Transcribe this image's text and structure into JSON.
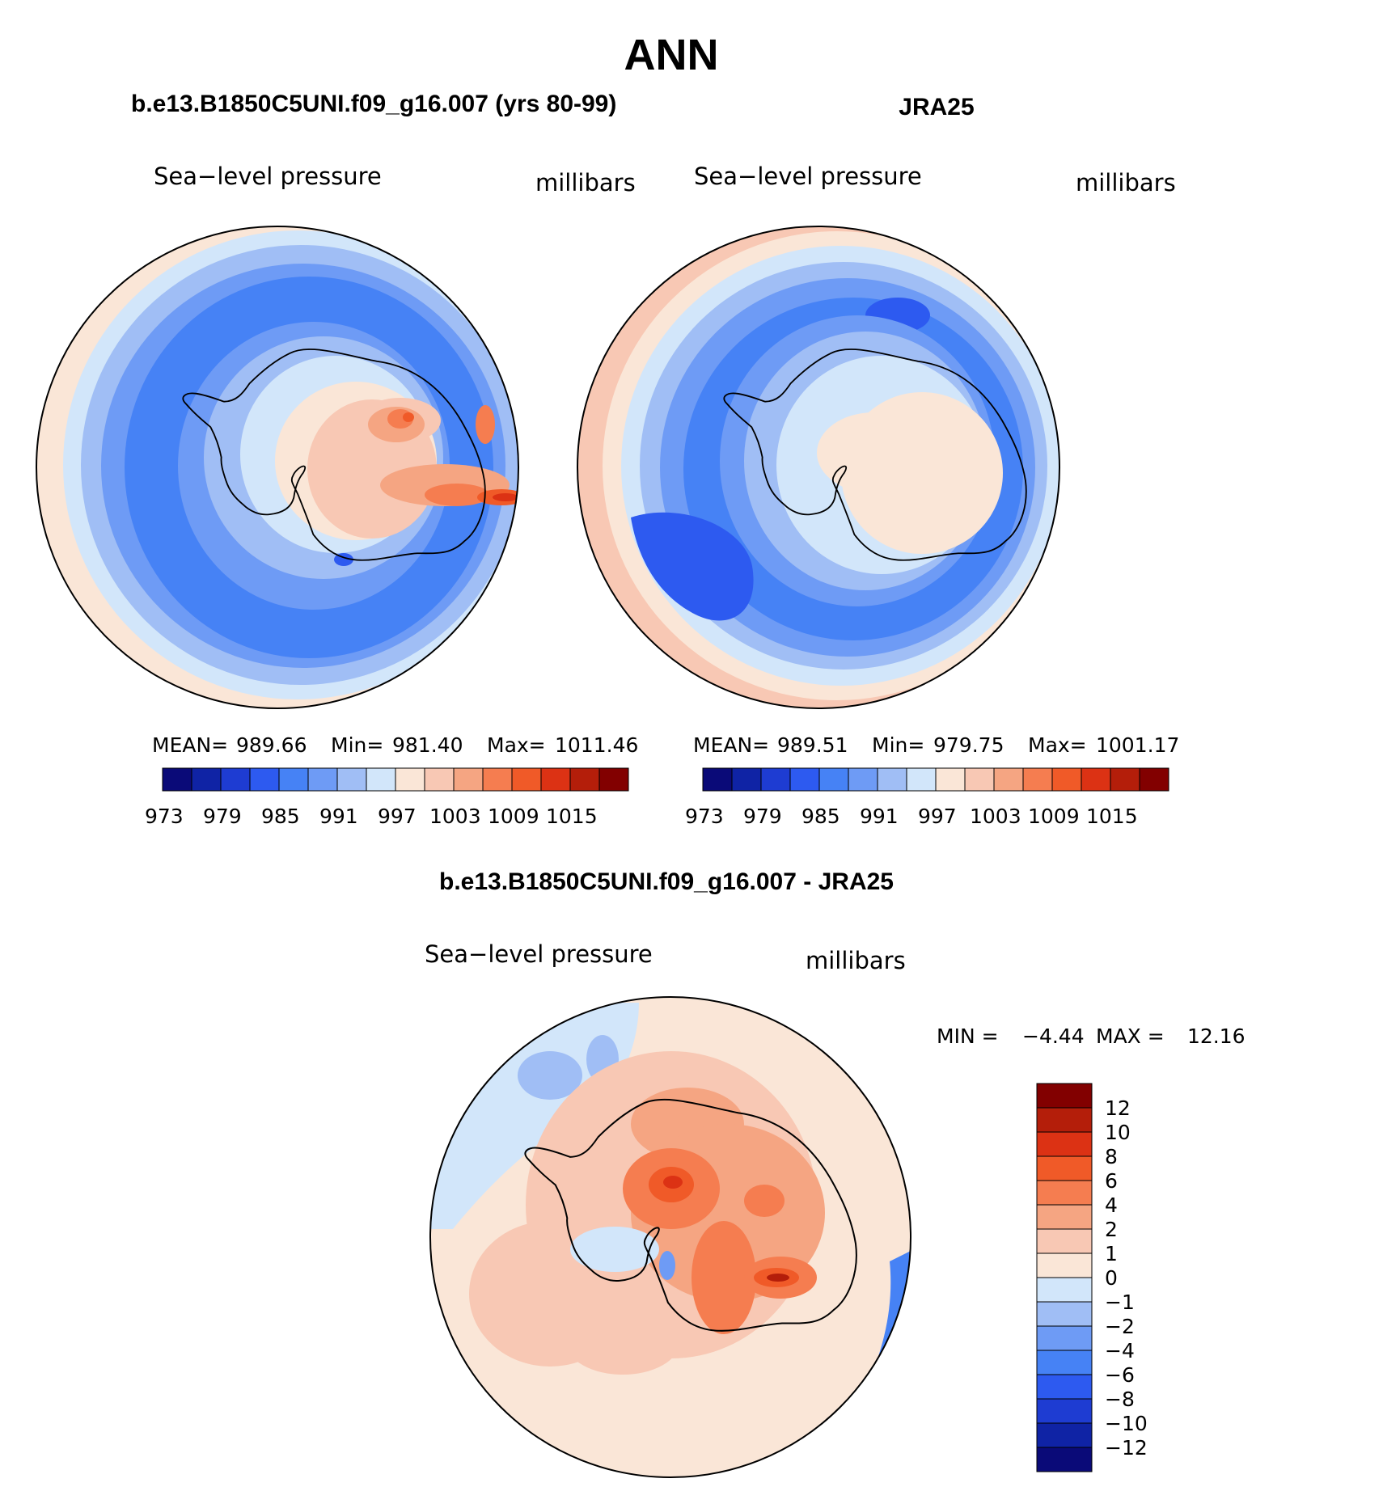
{
  "main_title": "ANN",
  "panels": {
    "model": {
      "title": "b.e13.B1850C5UNI.f09_g16.007 (yrs 80-99)",
      "variable": "Sea−level pressure",
      "units": "millibars",
      "stats": {
        "mean_label": "MEAN=",
        "mean": "989.66",
        "min_label": "Min=",
        "min": "981.40",
        "max_label": "Max=",
        "max": "1011.46"
      }
    },
    "obs": {
      "title": "JRA25",
      "variable": "Sea−level pressure",
      "units": "millibars",
      "stats": {
        "mean_label": "MEAN=",
        "mean": "989.51",
        "min_label": "Min=",
        "min": "979.75",
        "max_label": "Max=",
        "max": "1001.17"
      }
    },
    "diff": {
      "title": "b.e13.B1850C5UNI.f09_g16.007 - JRA25",
      "variable": "Sea−level pressure",
      "units": "millibars",
      "stats": {
        "min_label": "MIN =",
        "min": "−4.44",
        "max_label": "MAX =",
        "max": "12.16"
      }
    }
  },
  "colorbar_abs": {
    "tick_labels": [
      "973",
      "979",
      "985",
      "991",
      "997",
      "1003",
      "1009",
      "1015"
    ],
    "colors": [
      "#0a0a78",
      "#0f23a5",
      "#1e3cd2",
      "#2d5af0",
      "#4682f5",
      "#6e9bf5",
      "#a0bef5",
      "#d2e6fa",
      "#fae6d7",
      "#f8c8b4",
      "#f5a582",
      "#f57d50",
      "#f05a28",
      "#dc3214",
      "#b41e0a",
      "#820000"
    ]
  },
  "colorbar_diff": {
    "tick_labels": [
      "12",
      "10",
      "8",
      "6",
      "4",
      "2",
      "1",
      "0",
      "−1",
      "−2",
      "−4",
      "−6",
      "−8",
      "−10",
      "−12"
    ],
    "colors": [
      "#820000",
      "#b41e0a",
      "#dc3214",
      "#f05a28",
      "#f57d50",
      "#f5a582",
      "#f8c8b4",
      "#fae6d7",
      "#d2e6fa",
      "#a0bef5",
      "#6e9bf5",
      "#4682f5",
      "#2d5af0",
      "#1e3cd2",
      "#0f23a5",
      "#0a0a78"
    ]
  }
}
